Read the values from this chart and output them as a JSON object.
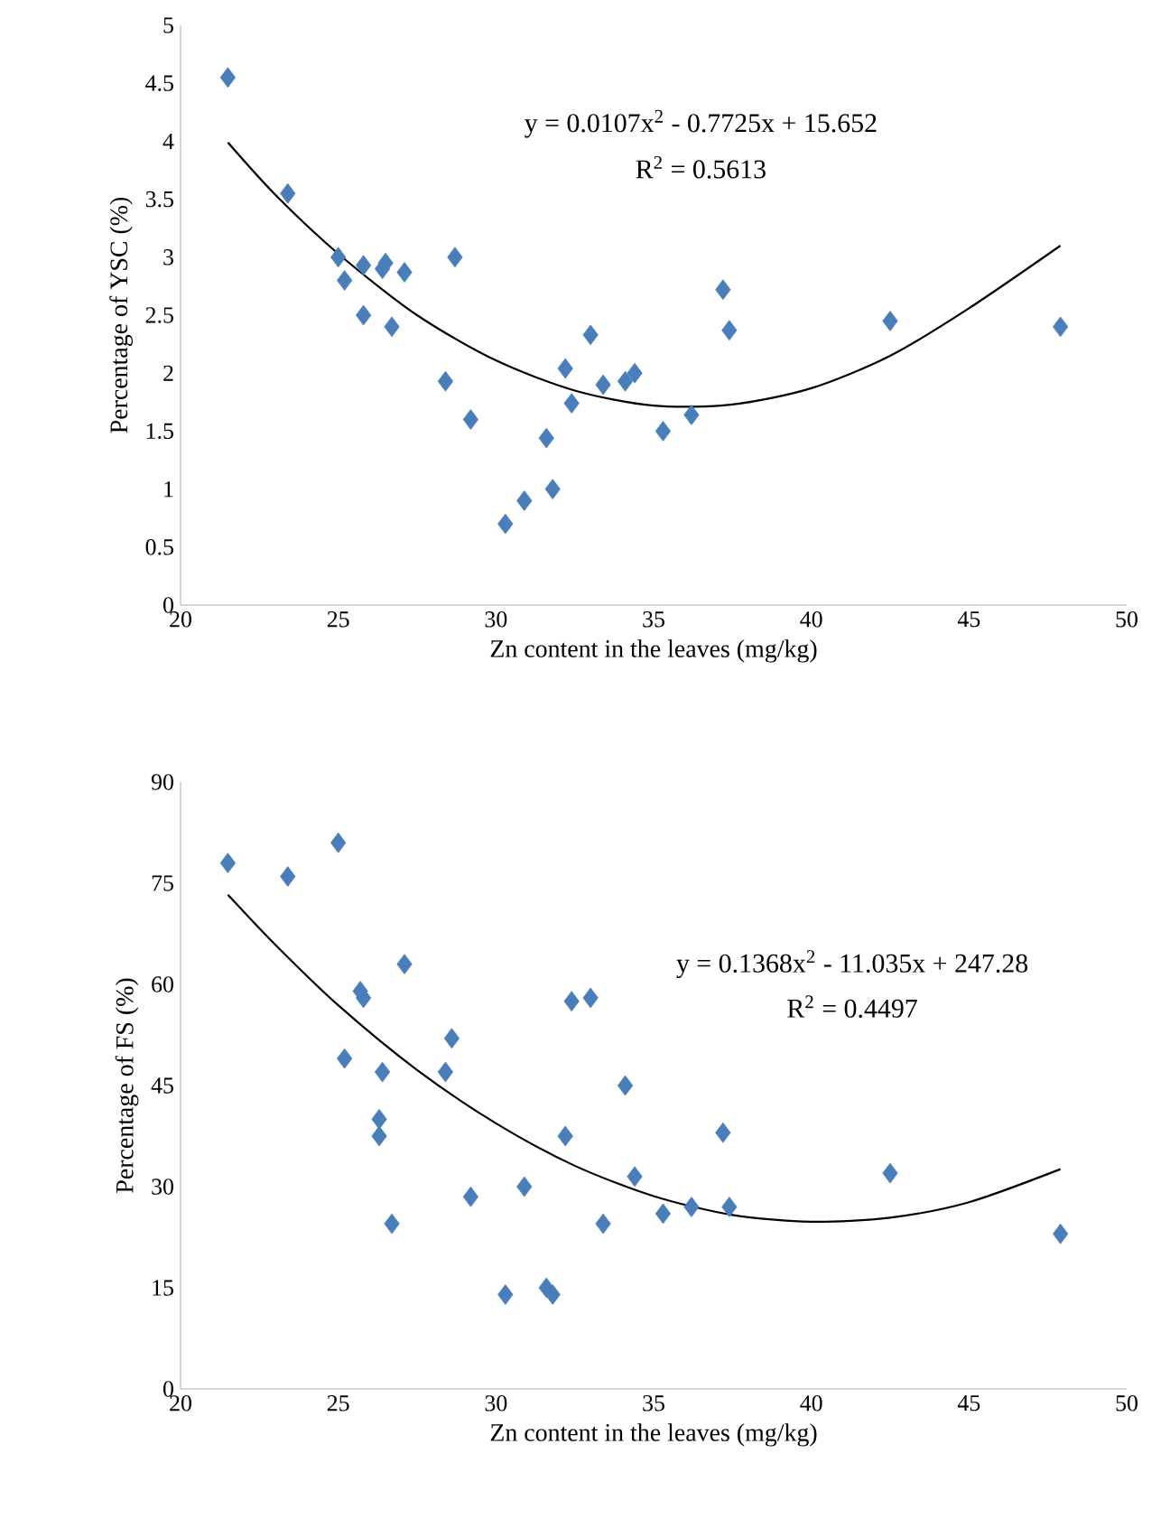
{
  "chart_data": [
    {
      "type": "scatter",
      "xlabel": "Zn content in the leaves (mg/kg)",
      "ylabel": "Percentage of YSC (%)",
      "xlim": [
        20,
        50
      ],
      "xticks": [
        20,
        25,
        30,
        35,
        40,
        45,
        50
      ],
      "ylim": [
        0,
        5
      ],
      "yticks": [
        0,
        0.5,
        1,
        1.5,
        2,
        2.5,
        3,
        3.5,
        4,
        4.5,
        5
      ],
      "annotations": [
        "y = 0.0107x$^{2}$ - 0.7725x + 15.652",
        "R$^{2}$ = 0.5613"
      ],
      "series": [
        {
          "marker": "diamond",
          "color": "#4a7ebb",
          "x": [
            21.5,
            23.4,
            25.0,
            25.2,
            25.8,
            25.8,
            26.4,
            26.5,
            26.7,
            27.1,
            28.4,
            28.7,
            29.2,
            30.3,
            30.9,
            31.6,
            31.8,
            32.2,
            32.4,
            33.0,
            33.4,
            34.1,
            34.4,
            35.3,
            36.2,
            37.2,
            37.4,
            42.5,
            47.9
          ],
          "values": [
            4.55,
            3.55,
            3.0,
            2.8,
            2.5,
            2.93,
            2.9,
            2.95,
            2.4,
            2.87,
            1.93,
            3.0,
            1.6,
            0.7,
            0.9,
            1.44,
            1.0,
            2.04,
            1.74,
            2.33,
            1.9,
            1.93,
            2.0,
            1.5,
            1.64,
            2.72,
            2.37,
            2.45,
            2.4
          ]
        },
        {
          "type": "line",
          "marker": "none",
          "color": "#000000",
          "x": [
            21.5,
            23,
            25,
            27.5,
            30,
            32.5,
            35,
            37.5,
            40,
            42.5,
            45,
            47.9
          ],
          "values": [
            3.99,
            3.54,
            3.03,
            2.5,
            2.11,
            1.85,
            1.72,
            1.73,
            1.87,
            2.15,
            2.56,
            3.1
          ]
        }
      ]
    },
    {
      "type": "scatter",
      "xlabel": "Zn content in the leaves (mg/kg)",
      "ylabel": "Percentage of FS (%)",
      "xlim": [
        20,
        50
      ],
      "xticks": [
        20,
        25,
        30,
        35,
        40,
        45,
        50
      ],
      "ylim": [
        0,
        90
      ],
      "yticks": [
        0,
        15,
        30,
        45,
        60,
        75,
        90
      ],
      "annotations": [
        "y = 0.1368x$^{2}$ - 11.035x + 247.28",
        "R$^{2}$ = 0.4497"
      ],
      "series": [
        {
          "marker": "diamond",
          "color": "#4a7ebb",
          "x": [
            21.5,
            23.4,
            25.0,
            25.2,
            25.7,
            25.8,
            26.3,
            26.3,
            26.4,
            26.7,
            27.1,
            28.4,
            28.6,
            29.2,
            30.3,
            30.9,
            31.6,
            31.8,
            32.2,
            32.4,
            33.0,
            33.4,
            34.1,
            34.4,
            35.3,
            36.2,
            37.2,
            37.4,
            42.5,
            47.9
          ],
          "values": [
            78,
            76,
            81,
            49,
            59,
            58,
            40,
            37.5,
            47,
            24.5,
            63,
            47,
            52,
            28.5,
            14,
            30,
            15,
            14,
            37.5,
            57.5,
            58,
            24.5,
            45,
            31.5,
            26,
            27,
            38,
            27,
            32,
            23
          ]
        },
        {
          "type": "line",
          "marker": "none",
          "color": "#000000",
          "x": [
            21.5,
            23,
            25,
            27.5,
            30,
            32.5,
            35,
            37.5,
            40,
            42.5,
            45,
            47.9
          ],
          "values": [
            73.3,
            65.9,
            56.9,
            47.3,
            39.4,
            33.1,
            28.6,
            25.8,
            24.8,
            25.4,
            27.7,
            32.6
          ]
        }
      ]
    }
  ]
}
